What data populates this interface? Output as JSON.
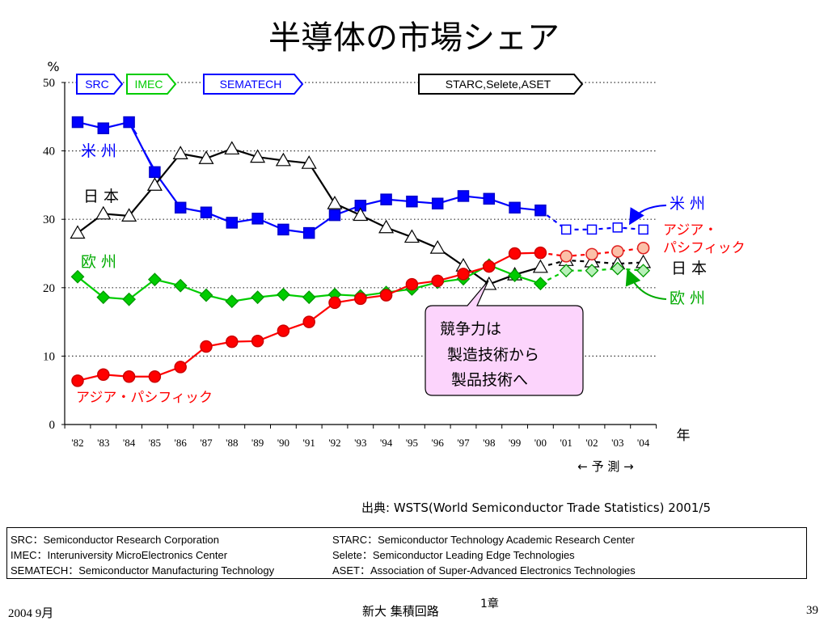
{
  "title": "半導体の市場シェア",
  "chart_data": {
    "type": "line",
    "ylabel_unit": "%",
    "xlabel": "年",
    "ylim": [
      0,
      50
    ],
    "yticks": [
      0,
      10,
      20,
      30,
      40,
      50
    ],
    "grid": "horizontal dotted",
    "x": [
      "'82",
      "'83",
      "'84",
      "'85",
      "'86",
      "'87",
      "'88",
      "'89",
      "'90",
      "'91",
      "'92",
      "'93",
      "'94",
      "'95",
      "'96",
      "'97",
      "'98",
      "'99",
      "'00",
      "'01",
      "'02",
      "'03",
      "'04"
    ],
    "forecast_label": "← 予 測 →",
    "forecast_start": "'01",
    "series": [
      {
        "name": "米 州",
        "color": "#0000ff",
        "marker": "square",
        "values": [
          44.2,
          43.3,
          44.2,
          36.9,
          31.7,
          31.0,
          29.5,
          30.1,
          28.5,
          28.0,
          30.6,
          32.0,
          32.9,
          32.6,
          32.3,
          33.4,
          33.0,
          31.7,
          31.3,
          28.5,
          28.5,
          28.8,
          28.5
        ]
      },
      {
        "name": "日 本",
        "color": "#000000",
        "marker": "triangle",
        "values": [
          28.0,
          30.8,
          30.5,
          35.0,
          39.6,
          38.9,
          40.3,
          39.1,
          38.6,
          38.2,
          32.3,
          30.6,
          28.8,
          27.4,
          25.8,
          23.2,
          20.5,
          21.9,
          23.0,
          24.0,
          23.8,
          23.5,
          23.7
        ]
      },
      {
        "name": "欧 州",
        "color": "#00cc00",
        "marker": "diamond",
        "values": [
          21.6,
          18.6,
          18.3,
          21.2,
          20.3,
          18.9,
          18.0,
          18.6,
          19.0,
          18.6,
          19.0,
          18.8,
          19.3,
          19.8,
          20.8,
          21.3,
          23.3,
          21.8,
          20.6,
          22.5,
          22.5,
          22.8,
          22.5
        ]
      },
      {
        "name": "アジア・パシフィック",
        "color": "#ff0000",
        "marker": "circle",
        "values": [
          6.4,
          7.3,
          7.0,
          7.0,
          8.4,
          11.4,
          12.1,
          12.2,
          13.7,
          15.0,
          17.8,
          18.4,
          18.9,
          20.5,
          21.0,
          22.0,
          23.1,
          25.0,
          25.1,
          24.6,
          24.9,
          25.3,
          25.8
        ]
      }
    ],
    "labels": {
      "americas_left": "米 州",
      "japan_left": "日 本",
      "europe_left": "欧 州",
      "asia_left": "アジア・パシフィック",
      "americas_right": "米 州",
      "asia_right_1": "アジア・",
      "asia_right_2": "パシフィック",
      "japan_right": "日 本",
      "europe_right": "欧 州"
    },
    "programs": [
      {
        "label": "SRC",
        "color": "#0000ff"
      },
      {
        "label": "IMEC",
        "color": "#00cc00"
      },
      {
        "label": "SEMATECH",
        "color": "#0000ff"
      },
      {
        "label": "STARC,Selete,ASET",
        "color": "#000000"
      }
    ],
    "callout": [
      "競争力は",
      "製造技術から",
      "製品技術へ"
    ]
  },
  "source": "出典: WSTS(World Semiconductor Trade Statistics) 2001/5",
  "glossary": {
    "left": [
      "SRC：Semiconductor Research Corporation",
      "IMEC：Interuniversity MicroElectronics Center",
      "SEMATECH：Semiconductor Manufacturing Technology"
    ],
    "right": [
      "STARC：Semiconductor Technology Academic Research Center",
      "Selete：Semiconductor Leading Edge Technologies",
      "ASET：Association of Super-Advanced Electronics Technologies"
    ]
  },
  "footer": {
    "date": "2004 9月",
    "center": "新大  集積回路",
    "chapter": "1章",
    "page": "39"
  }
}
